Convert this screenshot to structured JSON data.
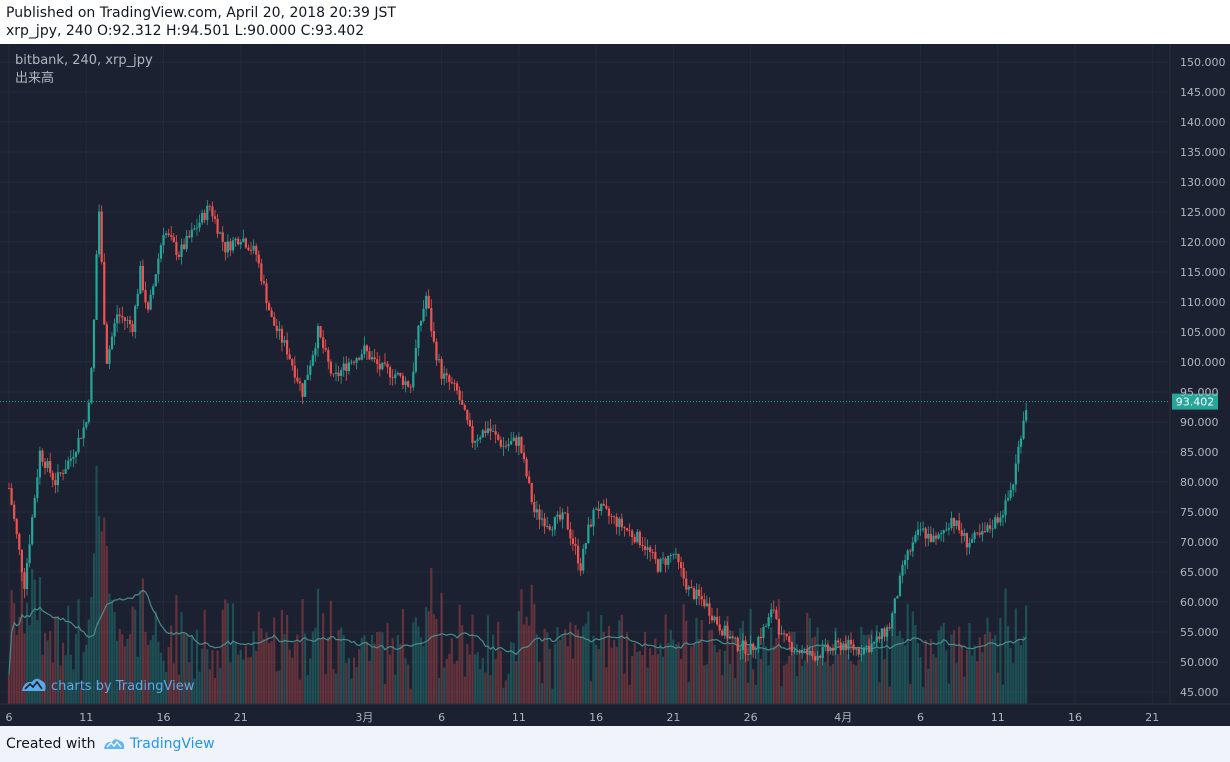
{
  "header": {
    "published": "Published on TradingView.com, April 20, 2018 20:39 JST",
    "ohlc": "xrp_jpy, 240 O:92.312 H:94.501 L:90.000 C:93.402"
  },
  "legend": {
    "symbol": "bitbank, 240, xrp_jpy",
    "volume_label": "出来高"
  },
  "watermark": {
    "text": "charts by TradingView",
    "icon": "tradingview-cloud-icon"
  },
  "footer": {
    "created": "Created with",
    "brand": "TradingView",
    "icon": "tradingview-cloud-icon"
  },
  "colors": {
    "background": "#1b2130",
    "up": "#26a69a",
    "down": "#ef5350",
    "grid": "#232a3a",
    "price_line": "#26a69a",
    "axis_text": "#b2b5be",
    "volume_ma": "#4a8c8c"
  },
  "chart_data": {
    "type": "candlestick",
    "symbol": "xrp_jpy",
    "exchange": "bitbank",
    "interval": "240",
    "last_price": "93.402",
    "ylim": [
      43,
      153
    ],
    "y_ticks": [
      "150.000",
      "145.000",
      "140.000",
      "135.000",
      "130.000",
      "125.000",
      "120.000",
      "115.000",
      "110.000",
      "105.000",
      "100.000",
      "95.000",
      "90.000",
      "85.000",
      "80.000",
      "75.000",
      "70.000",
      "65.000",
      "60.000",
      "55.000",
      "50.000",
      "45.000"
    ],
    "x_ticks": [
      "6",
      "11",
      "16",
      "21",
      "3月",
      "6",
      "11",
      "16",
      "21",
      "26",
      "4月",
      "6",
      "11",
      "16",
      "21"
    ],
    "price_path": [
      [
        6,
        79
      ],
      [
        7,
        63
      ],
      [
        8,
        85
      ],
      [
        9,
        80
      ],
      [
        10,
        84
      ],
      [
        11,
        90
      ],
      [
        11.4,
        100
      ],
      [
        11.8,
        127
      ],
      [
        12.3,
        100
      ],
      [
        13,
        108
      ],
      [
        14,
        106
      ],
      [
        14.5,
        115
      ],
      [
        15,
        108
      ],
      [
        16,
        122
      ],
      [
        17,
        118
      ],
      [
        18,
        122
      ],
      [
        19,
        126
      ],
      [
        20,
        119
      ],
      [
        21,
        121
      ],
      [
        22,
        118
      ],
      [
        23,
        107
      ],
      [
        24,
        102
      ],
      [
        25,
        95
      ],
      [
        26,
        105
      ],
      [
        27,
        97
      ],
      [
        28,
        100
      ],
      [
        29,
        102
      ],
      [
        30,
        99
      ],
      [
        31,
        98
      ],
      [
        32,
        96
      ],
      [
        32.5,
        105
      ],
      [
        33,
        111
      ],
      [
        33.5,
        103
      ],
      [
        34,
        98
      ],
      [
        35,
        95
      ],
      [
        36,
        87
      ],
      [
        37,
        89
      ],
      [
        38,
        86
      ],
      [
        39,
        87
      ],
      [
        40,
        75
      ],
      [
        41,
        73
      ],
      [
        42,
        74
      ],
      [
        43,
        66
      ],
      [
        43.5,
        72
      ],
      [
        44,
        76
      ],
      [
        45,
        74
      ],
      [
        46,
        72
      ],
      [
        47,
        70
      ],
      [
        48,
        66
      ],
      [
        49,
        68
      ],
      [
        50,
        62
      ],
      [
        51,
        60
      ],
      [
        52,
        56
      ],
      [
        53,
        53
      ],
      [
        54,
        52
      ],
      [
        55,
        56
      ],
      [
        55.5,
        59
      ],
      [
        56,
        54
      ],
      [
        57,
        52
      ],
      [
        58,
        51
      ],
      [
        59,
        52
      ],
      [
        60,
        53
      ],
      [
        61,
        52
      ],
      [
        62,
        53
      ],
      [
        63,
        56
      ],
      [
        64,
        67
      ],
      [
        65,
        72
      ],
      [
        66,
        70
      ],
      [
        67,
        74
      ],
      [
        68,
        70
      ],
      [
        69,
        71
      ],
      [
        70,
        74
      ],
      [
        70.5,
        76
      ],
      [
        71,
        80
      ],
      [
        71.6,
        90
      ],
      [
        71.9,
        93.4
      ]
    ],
    "volume_ylim": [
      0,
      300
    ],
    "note": "x values are calendar days counted on the chart's day axis (Feb 6 = 6, Mar 1 = 29)"
  }
}
